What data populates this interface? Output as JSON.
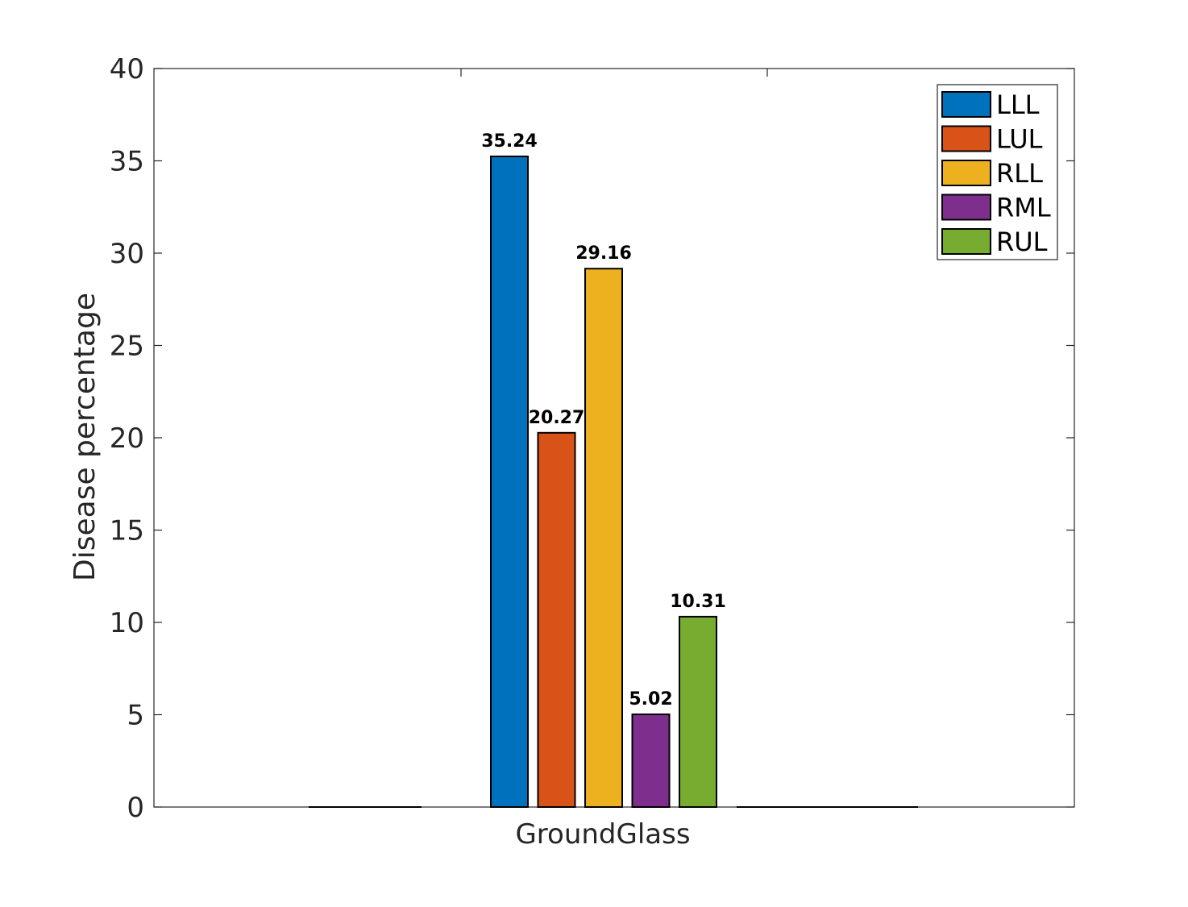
{
  "chart_data": {
    "type": "bar",
    "categories": [
      "GroundGlass"
    ],
    "series": [
      {
        "name": "LLL",
        "values": [
          35.24
        ],
        "color": "#0072BD"
      },
      {
        "name": "LUL",
        "values": [
          20.27
        ],
        "color": "#D95319"
      },
      {
        "name": "RLL",
        "values": [
          29.16
        ],
        "color": "#EDB120"
      },
      {
        "name": "RML",
        "values": [
          5.02
        ],
        "color": "#7E2F8E"
      },
      {
        "name": "RUL",
        "values": [
          10.31
        ],
        "color": "#77AC30"
      }
    ],
    "data_labels": [
      "35.24",
      "20.27",
      "29.16",
      "5.02",
      "10.31"
    ],
    "title": "",
    "xlabel": "",
    "ylabel": "Disease percentage",
    "ylim": [
      0,
      40
    ],
    "yticks": [
      0,
      5,
      10,
      15,
      20,
      25,
      30,
      35,
      40
    ],
    "grid": false,
    "legend_position": "top-right"
  }
}
